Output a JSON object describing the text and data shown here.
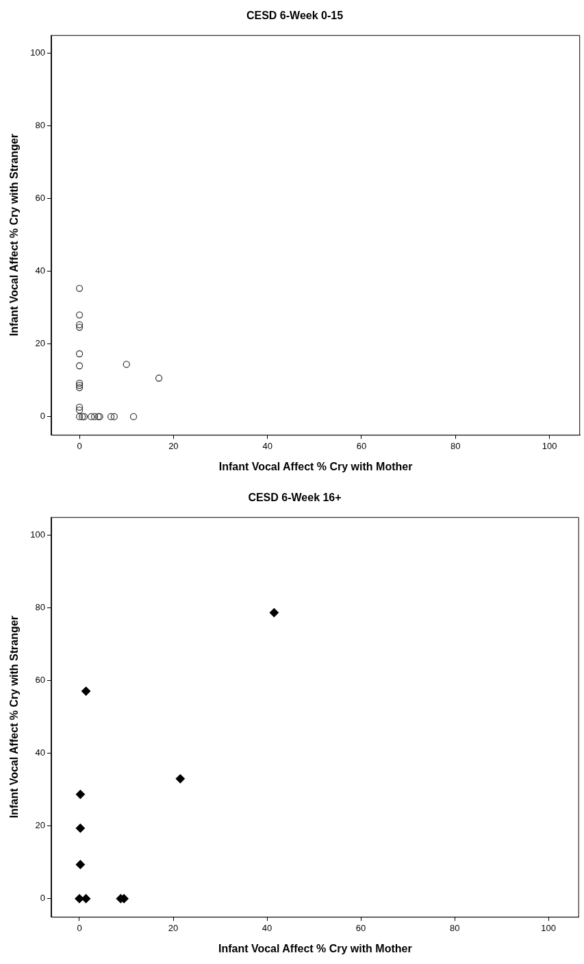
{
  "chart_data": [
    {
      "type": "scatter",
      "title": "CESD 6-Week 0-15",
      "xlabel": "Infant Vocal Affect % Cry with Mother",
      "ylabel": "Infant Vocal Affect % Cry with Stranger",
      "xlim": [
        -6,
        106.5
      ],
      "ylim": [
        -5,
        105
      ],
      "xticks": [
        0,
        20,
        40,
        60,
        80,
        100
      ],
      "yticks": [
        0,
        20,
        40,
        60,
        80,
        100
      ],
      "grid": false,
      "legend": false,
      "marker": "circle",
      "series": [
        {
          "color": "#404040",
          "x": [
            0,
            0,
            0,
            0,
            0,
            0,
            0,
            0,
            0,
            0,
            0,
            0,
            0.6,
            1,
            2.5,
            3.2,
            4,
            4.3,
            6.7,
            7.4,
            11.5,
            10,
            16.9
          ],
          "values": [
            35.3,
            28,
            25.3,
            24.6,
            17.3,
            14,
            9.2,
            8.6,
            8,
            2.6,
            1.8,
            0,
            0,
            0,
            0,
            0,
            0,
            0,
            0,
            0,
            0,
            14.4,
            10.6
          ]
        }
      ]
    },
    {
      "type": "scatter",
      "title": "CESD 6-Week 16+",
      "xlabel": "Infant Vocal Affect % Cry with Mother",
      "ylabel": "Infant Vocal Affect % Cry with Stranger",
      "xlim": [
        -6,
        106.5
      ],
      "ylim": [
        -5,
        105
      ],
      "xticks": [
        0,
        20,
        40,
        60,
        80,
        100
      ],
      "yticks": [
        0,
        20,
        40,
        60,
        80,
        100
      ],
      "grid": false,
      "legend": false,
      "marker": "diamond",
      "series": [
        {
          "color": "#000000",
          "x": [
            1.4,
            41.5,
            21.5,
            0.2,
            0.2,
            0.2,
            0,
            1.4,
            8.8,
            9.5
          ],
          "values": [
            57.1,
            78.7,
            33,
            28.7,
            19.4,
            9.4,
            0,
            0,
            0,
            0
          ]
        }
      ]
    }
  ]
}
